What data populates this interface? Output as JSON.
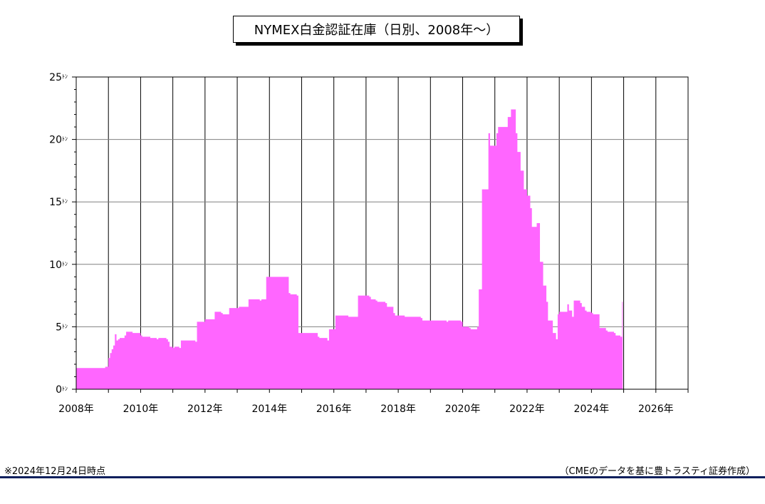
{
  "chart_data": {
    "type": "area",
    "title": "NYMEX白金認証在庫（日別、2008年～）",
    "y_unit": "ﾄﾝ",
    "ylim": [
      0,
      25
    ],
    "yticks": [
      0,
      5,
      10,
      15,
      20,
      25
    ],
    "xlim": [
      2008,
      2027
    ],
    "xticks": [
      2008,
      2010,
      2012,
      2014,
      2016,
      2018,
      2020,
      2022,
      2024,
      2026
    ],
    "x_unit": "年",
    "grid": true,
    "fill_color": "#ff66ff",
    "series": [
      {
        "x": [
          2008.0,
          2008.9,
          2008.9,
          2009.0,
          2009.05,
          2009.1,
          2009.15,
          2009.2,
          2009.25,
          2009.3,
          2009.35,
          2009.5,
          2009.55,
          2009.7,
          2009.75,
          2010.0,
          2010.05,
          2010.3,
          2010.35,
          2010.5,
          2010.55,
          2010.8,
          2010.85,
          2010.9,
          2011.0,
          2011.05,
          2011.2,
          2011.25,
          2011.3,
          2011.7,
          2011.75,
          2012.0,
          2012.05,
          2012.25,
          2012.3,
          2012.5,
          2012.55,
          2012.7,
          2012.75,
          2013.0,
          2013.05,
          2013.3,
          2013.35,
          2013.7,
          2013.75,
          2013.85,
          2013.9,
          2014.6,
          2014.65,
          2014.85,
          2014.9,
          2015.5,
          2015.55,
          2015.8,
          2015.85,
          2016.0,
          2016.05,
          2016.4,
          2016.45,
          2016.7,
          2016.75,
          2017.1,
          2017.15,
          2017.3,
          2017.35,
          2017.6,
          2017.65,
          2017.85,
          2017.9,
          2018.15,
          2018.2,
          2018.7,
          2018.75,
          2019.5,
          2019.55,
          2019.95,
          2020.0,
          2020.2,
          2020.25,
          2020.45,
          2020.5,
          2020.6,
          2020.8,
          2020.85,
          2021.05,
          2021.1,
          2021.4,
          2021.5,
          2021.65,
          2021.7,
          2021.8,
          2021.9,
          2022.0,
          2022.1,
          2022.15,
          2022.3,
          2022.4,
          2022.5,
          2022.6,
          2022.65,
          2022.8,
          2022.9,
          2022.95,
          2023.0,
          2023.05,
          2023.25,
          2023.3,
          2023.4,
          2023.45,
          2023.65,
          2023.7,
          2023.8,
          2023.85,
          2024.0,
          2024.05,
          2024.2,
          2024.25,
          2024.45,
          2024.5,
          2024.7,
          2024.75,
          2024.9,
          2024.95,
          2024.97
        ],
        "y": [
          1.7,
          1.7,
          1.8,
          2.5,
          2.9,
          3.2,
          3.5,
          4.4,
          3.9,
          4.0,
          4.1,
          4.3,
          4.6,
          4.6,
          4.5,
          4.3,
          4.2,
          4.1,
          4.1,
          4.0,
          4.1,
          4.0,
          3.8,
          3.4,
          3.3,
          3.4,
          3.3,
          3.9,
          3.9,
          3.8,
          5.4,
          5.6,
          5.6,
          5.6,
          6.2,
          6.1,
          6.0,
          6.0,
          6.5,
          6.5,
          6.6,
          6.6,
          7.2,
          7.1,
          7.2,
          7.2,
          9.0,
          7.7,
          7.6,
          7.5,
          4.5,
          4.2,
          4.1,
          3.9,
          4.8,
          4.8,
          5.9,
          5.9,
          5.8,
          5.8,
          7.5,
          7.4,
          7.2,
          7.1,
          7.0,
          6.9,
          6.6,
          6.1,
          5.9,
          5.9,
          5.8,
          5.7,
          5.5,
          5.4,
          5.5,
          5.4,
          5.0,
          4.9,
          4.8,
          5.0,
          8.0,
          16.0,
          20.5,
          19.5,
          20.5,
          21.0,
          21.8,
          22.4,
          20.5,
          19.0,
          17.5,
          16.0,
          15.5,
          14.5,
          13.0,
          13.3,
          10.2,
          8.3,
          7.0,
          5.5,
          4.5,
          4.0,
          6.0,
          6.2,
          6.2,
          6.8,
          6.3,
          5.8,
          7.1,
          6.9,
          6.6,
          6.3,
          6.2,
          6.1,
          6.0,
          6.0,
          4.9,
          4.7,
          4.6,
          4.5,
          4.3,
          4.2,
          7.0,
          0
        ]
      }
    ]
  },
  "footnote_left": "※2024年12月24日時点",
  "footnote_right": "（CMEのデータを基に豊トラスティ証券作成）"
}
